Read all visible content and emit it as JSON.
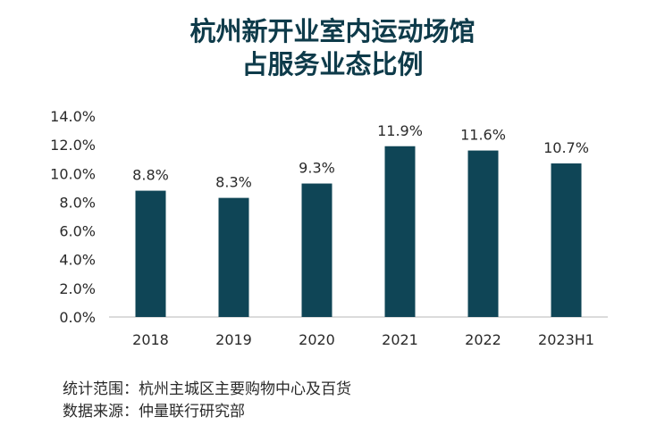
{
  "title_line1": "杭州新开业室内运动场馆",
  "title_line2": "占服务业态比例",
  "colors": {
    "bar": "#0f4556",
    "title": "#0e3b4a",
    "axis": "#cfcfcf"
  },
  "chart_data": {
    "type": "bar",
    "categories": [
      "2018",
      "2019",
      "2020",
      "2021",
      "2022",
      "2023H1"
    ],
    "values": [
      8.8,
      8.3,
      9.3,
      11.9,
      11.6,
      10.7
    ],
    "data_labels": [
      "8.8%",
      "8.3%",
      "9.3%",
      "11.9%",
      "11.6%",
      "10.7%"
    ],
    "yticks": [
      "0.0%",
      "2.0%",
      "4.0%",
      "6.0%",
      "8.0%",
      "10.0%",
      "12.0%",
      "14.0%"
    ],
    "ylim": [
      0,
      14
    ],
    "grid": false,
    "legend": "none"
  },
  "notes": {
    "scope": "统计范围：杭州主城区主要购物中心及百货",
    "source": "数据来源：仲量联行研究部"
  }
}
